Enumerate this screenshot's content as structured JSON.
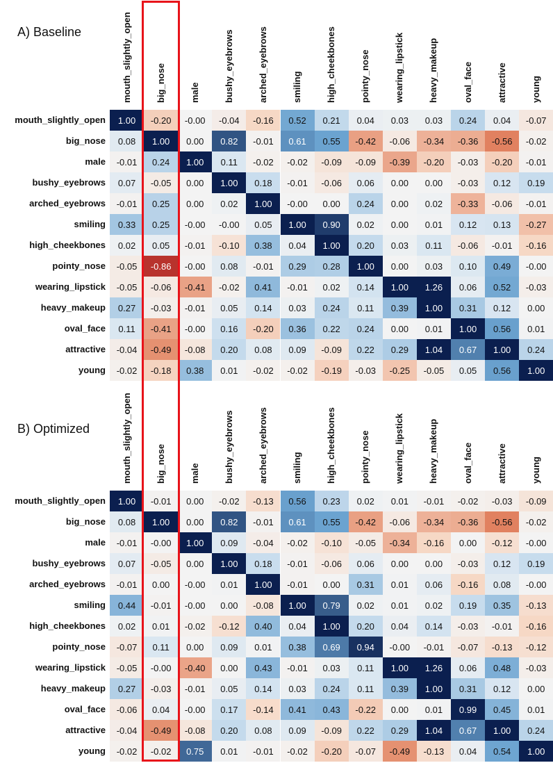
{
  "chart_data": [
    {
      "type": "heatmap",
      "title": "A) Baseline",
      "columns": [
        "mouth_slightly_open",
        "big_nose",
        "male",
        "bushy_eyebrows",
        "arched_eyebrows",
        "smiling",
        "high_cheekbones",
        "pointy_nose",
        "wearing_lipstick",
        "heavy_makeup",
        "oval_face",
        "attractive",
        "young"
      ],
      "rows": [
        "mouth_slightly_open",
        "big_nose",
        "male",
        "bushy_eyebrows",
        "arched_eyebrows",
        "smiling",
        "high_cheekbones",
        "pointy_nose",
        "wearing_lipstick",
        "heavy_makeup",
        "oval_face",
        "attractive",
        "young"
      ],
      "values": [
        [
          "1.00",
          "-0.20",
          "-0.00",
          "-0.04",
          "-0.16",
          "0.52",
          "0.21",
          "0.04",
          "0.03",
          "0.03",
          "0.24",
          "0.04",
          "-0.07"
        ],
        [
          "0.08",
          "1.00",
          "0.00",
          "0.82",
          "-0.01",
          "0.61",
          "0.55",
          "-0.42",
          "-0.06",
          "-0.34",
          "-0.36",
          "-0.56",
          "-0.02"
        ],
        [
          "-0.01",
          "0.24",
          "1.00",
          "0.11",
          "-0.02",
          "-0.02",
          "-0.09",
          "-0.09",
          "-0.39",
          "-0.20",
          "-0.03",
          "-0.20",
          "-0.01"
        ],
        [
          "0.07",
          "-0.05",
          "0.00",
          "1.00",
          "0.18",
          "-0.01",
          "-0.06",
          "0.06",
          "0.00",
          "0.00",
          "-0.03",
          "0.12",
          "0.19"
        ],
        [
          "-0.01",
          "0.25",
          "0.00",
          "0.02",
          "1.00",
          "-0.00",
          "0.00",
          "0.24",
          "0.00",
          "0.02",
          "-0.33",
          "-0.06",
          "-0.01"
        ],
        [
          "0.33",
          "0.25",
          "-0.00",
          "-0.00",
          "0.05",
          "1.00",
          "0.90",
          "0.02",
          "0.00",
          "0.01",
          "0.12",
          "0.13",
          "-0.27"
        ],
        [
          "0.02",
          "0.05",
          "-0.01",
          "-0.10",
          "0.38",
          "0.04",
          "1.00",
          "0.20",
          "0.03",
          "0.11",
          "-0.06",
          "-0.01",
          "-0.16"
        ],
        [
          "-0.05",
          "-0.86",
          "-0.00",
          "0.08",
          "-0.01",
          "0.29",
          "0.28",
          "1.00",
          "0.00",
          "0.03",
          "0.10",
          "0.49",
          "-0.00"
        ],
        [
          "-0.05",
          "-0.06",
          "-0.41",
          "-0.02",
          "0.41",
          "-0.01",
          "0.02",
          "0.14",
          "1.00",
          "1.26",
          "0.06",
          "0.52",
          "-0.03"
        ],
        [
          "0.27",
          "-0.03",
          "-0.01",
          "0.05",
          "0.14",
          "0.03",
          "0.24",
          "0.11",
          "0.39",
          "1.00",
          "0.31",
          "0.12",
          "0.00"
        ],
        [
          "0.11",
          "-0.41",
          "-0.00",
          "0.16",
          "-0.20",
          "0.36",
          "0.22",
          "0.24",
          "0.00",
          "0.01",
          "1.00",
          "0.56",
          "0.01"
        ],
        [
          "-0.04",
          "-0.49",
          "-0.08",
          "0.20",
          "0.08",
          "0.09",
          "-0.09",
          "0.22",
          "0.29",
          "1.04",
          "0.67",
          "1.00",
          "0.24"
        ],
        [
          "-0.02",
          "-0.18",
          "0.38",
          "0.01",
          "-0.02",
          "-0.02",
          "-0.19",
          "-0.03",
          "-0.25",
          "-0.05",
          "0.05",
          "0.56",
          "1.00"
        ]
      ],
      "color_scale": {
        "negative": "#a50f15",
        "zero": "#f3f3f3",
        "positive": "#0b1f4f",
        "saturate_at": 1.0
      },
      "highlight_column": "big_nose"
    },
    {
      "type": "heatmap",
      "title": "B) Optimized",
      "columns": [
        "mouth_slightly_open",
        "big_nose",
        "male",
        "bushy_eyebrows",
        "arched_eyebrows",
        "smiling",
        "high_cheekbones",
        "pointy_nose",
        "wearing_lipstick",
        "heavy_makeup",
        "oval_face",
        "attractive",
        "young"
      ],
      "rows": [
        "mouth_slightly_open",
        "big_nose",
        "male",
        "bushy_eyebrows",
        "arched_eyebrows",
        "smiling",
        "high_cheekbones",
        "pointy_nose",
        "wearing_lipstick",
        "heavy_makeup",
        "oval_face",
        "attractive",
        "young"
      ],
      "values": [
        [
          "1.00",
          "-0.01",
          "0.00",
          "-0.02",
          "-0.13",
          "0.56",
          "0.23",
          "0.02",
          "0.01",
          "-0.01",
          "-0.02",
          "-0.03",
          "-0.09"
        ],
        [
          "0.08",
          "1.00",
          "0.00",
          "0.82",
          "-0.01",
          "0.61",
          "0.55",
          "-0.42",
          "-0.06",
          "-0.34",
          "-0.36",
          "-0.56",
          "-0.02"
        ],
        [
          "-0.01",
          "-0.00",
          "1.00",
          "0.09",
          "-0.04",
          "-0.02",
          "-0.10",
          "-0.05",
          "-0.34",
          "-0.16",
          "0.00",
          "-0.12",
          "-0.00"
        ],
        [
          "0.07",
          "-0.05",
          "0.00",
          "1.00",
          "0.18",
          "-0.01",
          "-0.06",
          "0.06",
          "0.00",
          "0.00",
          "-0.03",
          "0.12",
          "0.19"
        ],
        [
          "-0.01",
          "0.00",
          "-0.00",
          "0.01",
          "1.00",
          "-0.01",
          "0.00",
          "0.31",
          "0.01",
          "0.06",
          "-0.16",
          "0.08",
          "-0.00"
        ],
        [
          "0.44",
          "-0.01",
          "-0.00",
          "0.00",
          "-0.08",
          "1.00",
          "0.79",
          "0.02",
          "0.01",
          "0.02",
          "0.19",
          "0.35",
          "-0.13"
        ],
        [
          "0.02",
          "0.01",
          "-0.02",
          "-0.12",
          "0.40",
          "0.04",
          "1.00",
          "0.20",
          "0.04",
          "0.14",
          "-0.03",
          "-0.01",
          "-0.16"
        ],
        [
          "-0.07",
          "0.11",
          "0.00",
          "0.09",
          "0.01",
          "0.38",
          "0.69",
          "0.94",
          "-0.00",
          "-0.01",
          "-0.07",
          "-0.13",
          "-0.12"
        ],
        [
          "-0.05",
          "-0.00",
          "-0.40",
          "0.00",
          "0.43",
          "-0.01",
          "0.03",
          "0.11",
          "1.00",
          "1.26",
          "0.06",
          "0.48",
          "-0.03"
        ],
        [
          "0.27",
          "-0.03",
          "-0.01",
          "0.05",
          "0.14",
          "0.03",
          "0.24",
          "0.11",
          "0.39",
          "1.00",
          "0.31",
          "0.12",
          "0.00"
        ],
        [
          "-0.06",
          "0.04",
          "-0.00",
          "0.17",
          "-0.14",
          "0.41",
          "0.43",
          "-0.22",
          "0.00",
          "0.01",
          "0.99",
          "0.45",
          "0.01"
        ],
        [
          "-0.04",
          "-0.49",
          "-0.08",
          "0.20",
          "0.08",
          "0.09",
          "-0.09",
          "0.22",
          "0.29",
          "1.04",
          "0.67",
          "1.00",
          "0.24"
        ],
        [
          "-0.02",
          "-0.02",
          "0.75",
          "0.01",
          "-0.01",
          "-0.02",
          "-0.20",
          "-0.07",
          "-0.49",
          "-0.13",
          "0.04",
          "0.54",
          "1.00"
        ]
      ],
      "color_scale": {
        "negative": "#a50f15",
        "zero": "#f3f3f3",
        "positive": "#0b1f4f",
        "saturate_at": 1.0
      },
      "highlight_column": "big_nose"
    }
  ]
}
